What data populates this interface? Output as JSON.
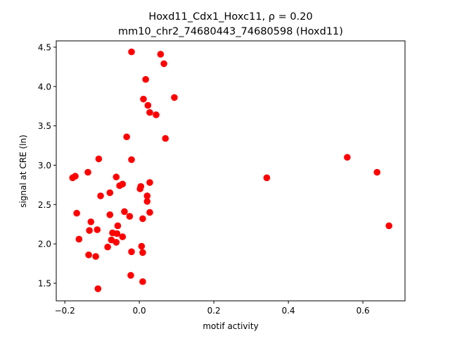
{
  "chart_data": {
    "type": "scatter",
    "title": "Hoxd11_Cdx1_Hoxc11, ρ = 0.20",
    "subtitle": "mm10_chr2_74680443_74680598 (Hoxd11)",
    "xlabel": "motif activity",
    "ylabel": "signal at CRE (ln)",
    "xlim": [
      -0.223,
      0.713
    ],
    "ylim": [
      1.276,
      4.58
    ],
    "xticks": [
      -0.2,
      0.0,
      0.2,
      0.4,
      0.6
    ],
    "xtick_labels": [
      "−0.2",
      "0.0",
      "0.2",
      "0.4",
      "0.6"
    ],
    "yticks": [
      1.5,
      2.0,
      2.5,
      3.0,
      3.5,
      4.0,
      4.5
    ],
    "ytick_labels": [
      "1.5",
      "2.0",
      "2.5",
      "3.0",
      "3.5",
      "4.0",
      "4.5"
    ],
    "grid": false,
    "marker_color": "#ff0000",
    "points": [
      [
        -0.021,
        4.44
      ],
      [
        0.057,
        4.41
      ],
      [
        0.066,
        4.29
      ],
      [
        0.017,
        4.09
      ],
      [
        0.094,
        3.86
      ],
      [
        0.011,
        3.84
      ],
      [
        0.023,
        3.76
      ],
      [
        0.028,
        3.67
      ],
      [
        0.045,
        3.64
      ],
      [
        0.07,
        3.34
      ],
      [
        -0.034,
        3.36
      ],
      [
        -0.109,
        3.08
      ],
      [
        -0.021,
        3.07
      ],
      [
        -0.179,
        2.84
      ],
      [
        -0.172,
        2.86
      ],
      [
        -0.138,
        2.91
      ],
      [
        -0.062,
        2.85
      ],
      [
        -0.053,
        2.74
      ],
      [
        -0.045,
        2.76
      ],
      [
        0.028,
        2.78
      ],
      [
        0.002,
        2.7
      ],
      [
        0.004,
        2.73
      ],
      [
        -0.079,
        2.65
      ],
      [
        -0.104,
        2.61
      ],
      [
        0.021,
        2.61
      ],
      [
        0.021,
        2.54
      ],
      [
        -0.168,
        2.39
      ],
      [
        -0.079,
        2.37
      ],
      [
        -0.04,
        2.41
      ],
      [
        -0.026,
        2.35
      ],
      [
        0.009,
        2.32
      ],
      [
        0.028,
        2.4
      ],
      [
        -0.13,
        2.28
      ],
      [
        -0.134,
        2.17
      ],
      [
        -0.113,
        2.18
      ],
      [
        -0.058,
        2.23
      ],
      [
        -0.072,
        2.14
      ],
      [
        -0.06,
        2.13
      ],
      [
        -0.045,
        2.09
      ],
      [
        -0.162,
        2.06
      ],
      [
        -0.075,
        2.05
      ],
      [
        -0.062,
        2.02
      ],
      [
        -0.085,
        1.96
      ],
      [
        -0.021,
        1.9
      ],
      [
        0.006,
        1.97
      ],
      [
        0.009,
        1.89
      ],
      [
        -0.136,
        1.86
      ],
      [
        -0.117,
        1.84
      ],
      [
        -0.023,
        1.6
      ],
      [
        0.009,
        1.52
      ],
      [
        -0.111,
        1.43
      ],
      [
        0.342,
        2.84
      ],
      [
        0.558,
        3.1
      ],
      [
        0.638,
        2.91
      ],
      [
        0.67,
        2.23
      ]
    ]
  }
}
